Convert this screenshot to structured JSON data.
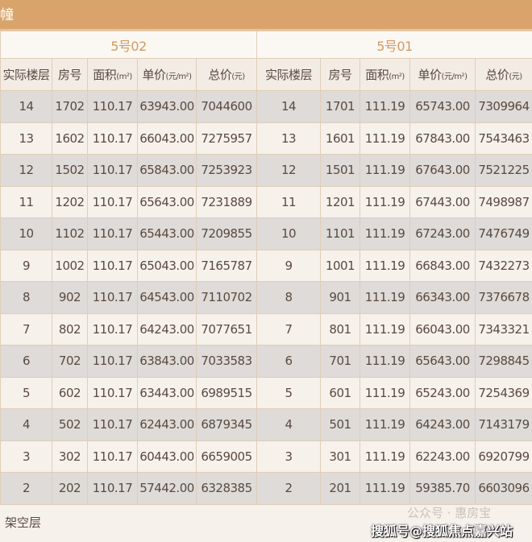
{
  "header": {
    "title": "幢"
  },
  "groups": [
    {
      "name": "5号02",
      "columns": [
        "实际楼层",
        "房号",
        "面积",
        "单价",
        "总价"
      ],
      "rows": [
        [
          "14",
          "1702",
          "110.17",
          "63943.00",
          "7044600"
        ],
        [
          "13",
          "1602",
          "110.17",
          "66043.00",
          "7275957"
        ],
        [
          "12",
          "1502",
          "110.17",
          "65843.00",
          "7253923"
        ],
        [
          "11",
          "1202",
          "110.17",
          "65643.00",
          "7231889"
        ],
        [
          "10",
          "1102",
          "110.17",
          "65443.00",
          "7209855"
        ],
        [
          "9",
          "1002",
          "110.17",
          "65043.00",
          "7165787"
        ],
        [
          "8",
          "902",
          "110.17",
          "64543.00",
          "7110702"
        ],
        [
          "7",
          "802",
          "110.17",
          "64243.00",
          "7077651"
        ],
        [
          "6",
          "702",
          "110.17",
          "63843.00",
          "7033583"
        ],
        [
          "5",
          "602",
          "110.17",
          "63443.00",
          "6989515"
        ],
        [
          "4",
          "502",
          "110.17",
          "62443.00",
          "6879345"
        ],
        [
          "3",
          "302",
          "110.17",
          "60443.00",
          "6659005"
        ],
        [
          "2",
          "202",
          "110.17",
          "57442.00",
          "6328385"
        ]
      ]
    },
    {
      "name": "5号01",
      "columns": [
        "实际楼层",
        "房号",
        "面积",
        "单价",
        "总价"
      ],
      "rows": [
        [
          "14",
          "1701",
          "111.19",
          "65743.00",
          "7309964"
        ],
        [
          "13",
          "1601",
          "111.19",
          "67843.00",
          "7543463"
        ],
        [
          "12",
          "1501",
          "111.19",
          "67643.00",
          "7521225"
        ],
        [
          "11",
          "1201",
          "111.19",
          "67443.00",
          "7498987"
        ],
        [
          "10",
          "1101",
          "111.19",
          "67243.00",
          "7476749"
        ],
        [
          "9",
          "1001",
          "111.19",
          "66843.00",
          "7432273"
        ],
        [
          "8",
          "901",
          "111.19",
          "66343.00",
          "7376678"
        ],
        [
          "7",
          "801",
          "111.19",
          "66043.00",
          "7343321"
        ],
        [
          "6",
          "701",
          "111.19",
          "65643.00",
          "7298845"
        ],
        [
          "5",
          "601",
          "111.19",
          "65243.00",
          "7254369"
        ],
        [
          "4",
          "501",
          "111.19",
          "64243.00",
          "7143179"
        ],
        [
          "3",
          "301",
          "111.19",
          "62243.00",
          "6920799"
        ],
        [
          "2",
          "201",
          "111.19",
          "59385.70",
          "6603096"
        ]
      ]
    }
  ],
  "units": {
    "area": "(m²)",
    "unit_price": "(元/m²)",
    "total": "(元)"
  },
  "footer": {
    "label": "架空层",
    "watermark_account": "公众号 · 惠房宝",
    "watermark_site": "搜狐号@搜狐焦点嘉兴站"
  }
}
